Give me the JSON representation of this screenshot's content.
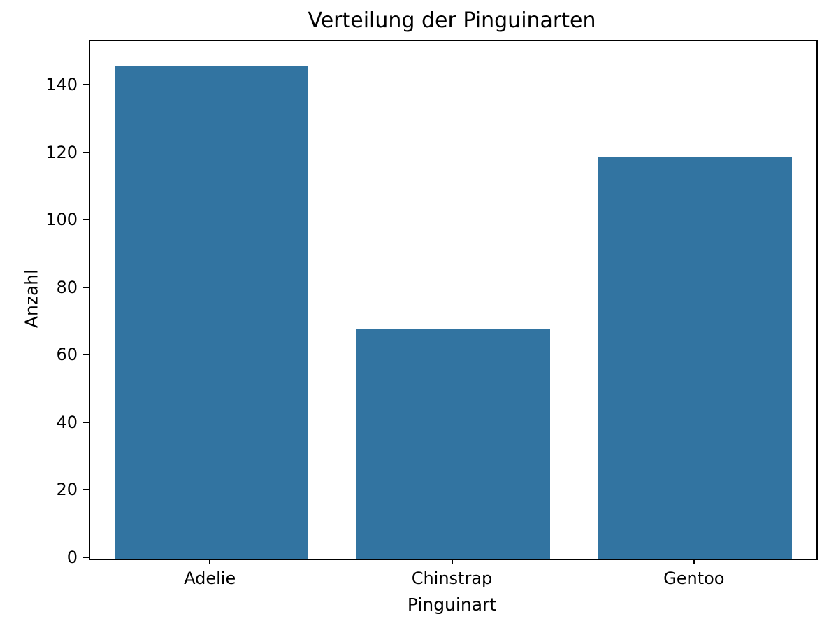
{
  "chart_data": {
    "type": "bar",
    "title": "Verteilung der Pinguinarten",
    "categories": [
      "Adelie",
      "Chinstrap",
      "Gentoo"
    ],
    "values": [
      146,
      68,
      119
    ],
    "xlabel": "Pinguinart",
    "ylabel": "Anzahl",
    "ylim": [
      0,
      153.3
    ],
    "yticks": [
      0,
      20,
      40,
      60,
      80,
      100,
      120,
      140
    ],
    "bar_color": "#3274a1",
    "bar_width_fraction": 0.8,
    "grid": false,
    "legend": null,
    "spine_color": "#000000",
    "text_color": "#000000",
    "background_color": "#ffffff"
  }
}
